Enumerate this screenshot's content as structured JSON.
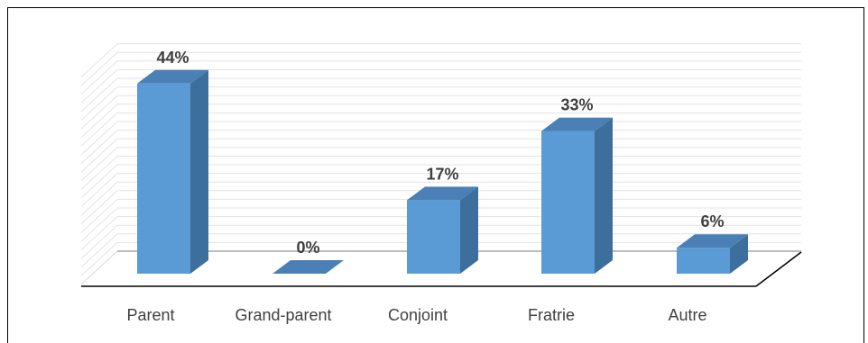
{
  "chart_data": {
    "type": "bar",
    "style": "3d-column",
    "categories": [
      "Parent",
      "Grand-parent",
      "Conjoint",
      "Fratrie",
      "Autre"
    ],
    "values": [
      44,
      0,
      17,
      33,
      6
    ],
    "data_labels": [
      "44%",
      "0%",
      "17%",
      "33%",
      "6%"
    ],
    "unit": "%",
    "ylim": [
      0,
      50
    ],
    "grid": true,
    "legend": "none",
    "colors": {
      "bar_front": "#5b9bd5",
      "bar_side": "#3d6f9c",
      "bar_top": "#4a80b5",
      "grid": "#e3e3e3",
      "floor": "#000000",
      "text": "#404040"
    }
  }
}
